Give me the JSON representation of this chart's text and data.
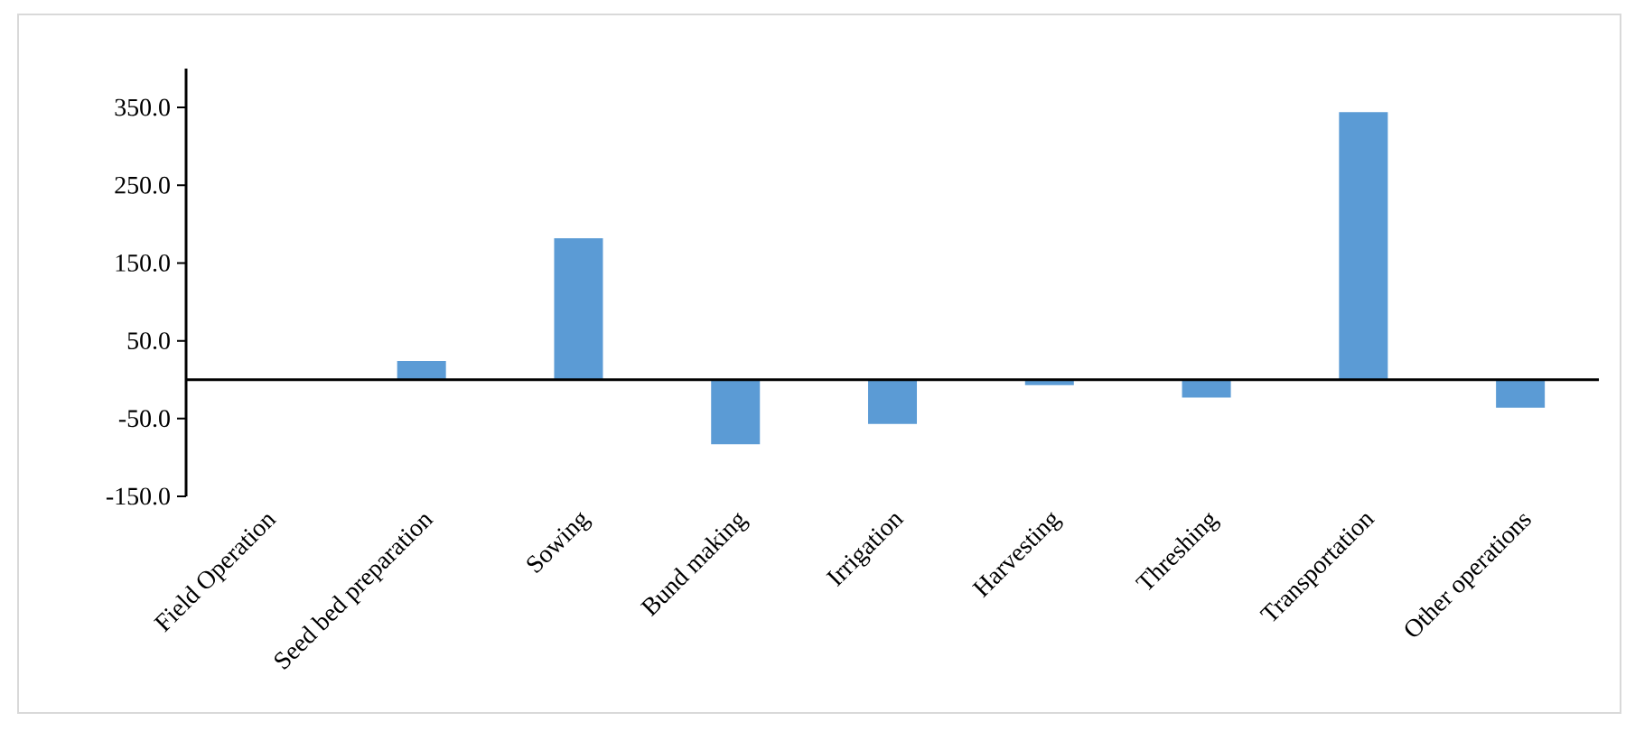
{
  "chart_data": {
    "type": "bar",
    "categories": [
      "Field Operation",
      "Seed bed preparation",
      "Sowing",
      "Bund making",
      "Irrigation",
      "Harvesting",
      "Threshing",
      "Transportation",
      "Other operations"
    ],
    "values": [
      0,
      24,
      182,
      -83,
      -57,
      -7,
      -23,
      344,
      -36
    ],
    "color": "#5b9bd5",
    "ylim": [
      -150,
      400
    ],
    "yticks": [
      {
        "value": -150,
        "label": "-150.0"
      },
      {
        "value": -50,
        "label": "-50.0"
      },
      {
        "value": 50,
        "label": "50.0"
      },
      {
        "value": 150,
        "label": "150.0"
      },
      {
        "value": 250,
        "label": "250.0"
      },
      {
        "value": 350,
        "label": "350.0"
      }
    ],
    "grid": false
  }
}
